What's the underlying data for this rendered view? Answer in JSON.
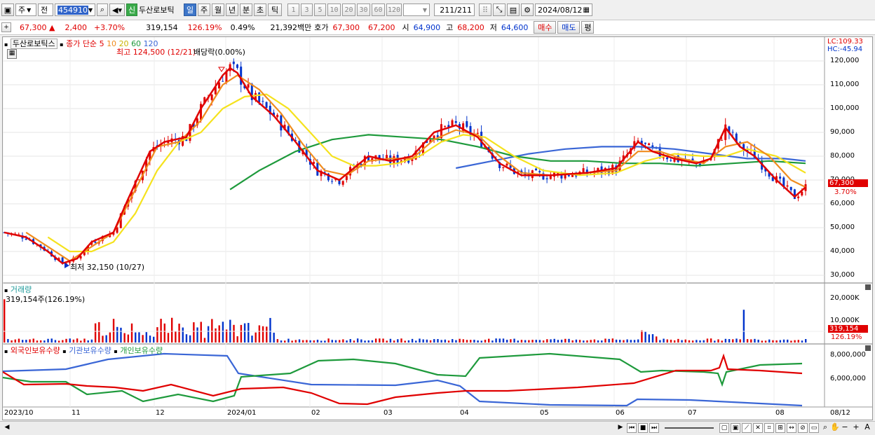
{
  "toolbar": {
    "period_label": "주",
    "market_label": "전",
    "code": "454910",
    "sin_badge": "신",
    "name": "두산로보틱",
    "period_tabs": [
      "일",
      "주",
      "월",
      "년",
      "분",
      "초",
      "틱"
    ],
    "interval_buttons": [
      "1",
      "3",
      "5",
      "10",
      "20",
      "30",
      "60",
      "120"
    ],
    "count": "211",
    "count_total": "/211",
    "date": "2024/08/12"
  },
  "quote": {
    "price": "67,300 ▲",
    "change": "2,400",
    "change_pct": "+3.70%",
    "volume": "319,154",
    "volume_ratio": "126.19%",
    "turnover": "0.49%",
    "amount": "21,392백만",
    "hoga_label": "호가",
    "ask": "67,300",
    "bid": "67,200",
    "open_label": "시",
    "open": "64,900",
    "high_label": "고",
    "high": "68,200",
    "low_label": "저",
    "low": "64,600",
    "buy_label": "매수",
    "sell_label": "매도",
    "eval_label": "평"
  },
  "price_panel": {
    "title": "두산로보틱스",
    "ma_title": "종가 단순",
    "ma_periods": [
      "5",
      "10",
      "20",
      "60",
      "120"
    ],
    "high_note": "최고 124,500 (12/21)",
    "ex_note": "배당락(0.00%)",
    "low_note": "최저 32,150 (10/27)",
    "lc": "LC:109.33",
    "hc": "HC:-45.94",
    "last_price": "67,300",
    "last_pct": "3.70%",
    "y_ticks": [
      "120,000",
      "110,000",
      "100,000",
      "90,000",
      "80,000",
      "70,000",
      "60,000",
      "50,000",
      "40,000",
      "30,000"
    ]
  },
  "volume_panel": {
    "title": "거래량",
    "value_note": "319,154주(126.19%)",
    "y_ticks": [
      "20,000K",
      "10,000K"
    ],
    "last_value": "319,154",
    "last_pct": "126.19%"
  },
  "holding_panel": {
    "legend": [
      "외국인보유수량",
      "기관보유수량",
      "개인보유수량"
    ],
    "y_ticks": [
      "8,000,000",
      "6,000,000"
    ]
  },
  "x_labels": [
    "2023/10",
    "11",
    "12",
    "2024/01",
    "02",
    "03",
    "04",
    "05",
    "06",
    "07",
    "08",
    "08/12"
  ],
  "colors": {
    "up": "#e00000",
    "down": "#0033cc",
    "ma5": "#e00000",
    "ma10": "#f08c1e",
    "ma20": "#f5e21e",
    "ma60": "#1e9a3c",
    "ma120": "#3a66d6",
    "sel": "#3d76c9"
  },
  "chart_data": {
    "type": "candlestick",
    "x_range": [
      "2023/10",
      "2024/08/12"
    ],
    "ylim": [
      27000,
      125000
    ],
    "series_ma": {
      "ma5": [
        [
          0,
          48000
        ],
        [
          6,
          46000
        ],
        [
          12,
          40000
        ],
        [
          16,
          35000
        ],
        [
          20,
          37000
        ],
        [
          24,
          44000
        ],
        [
          30,
          48000
        ],
        [
          34,
          62000
        ],
        [
          40,
          82000
        ],
        [
          44,
          86000
        ],
        [
          50,
          88000
        ],
        [
          54,
          100000
        ],
        [
          60,
          114000
        ],
        [
          62,
          117000
        ],
        [
          64,
          115000
        ],
        [
          68,
          105000
        ],
        [
          74,
          97000
        ],
        [
          80,
          86000
        ],
        [
          86,
          74000
        ],
        [
          92,
          70000
        ],
        [
          96,
          75000
        ],
        [
          100,
          80000
        ],
        [
          106,
          78000
        ],
        [
          112,
          80000
        ],
        [
          118,
          90000
        ],
        [
          124,
          93000
        ],
        [
          130,
          88000
        ],
        [
          136,
          77000
        ],
        [
          142,
          72000
        ],
        [
          150,
          72000
        ],
        [
          160,
          73000
        ],
        [
          168,
          75000
        ],
        [
          174,
          86000
        ],
        [
          178,
          82000
        ],
        [
          184,
          79000
        ],
        [
          190,
          77000
        ],
        [
          194,
          79000
        ],
        [
          198,
          92000
        ],
        [
          202,
          84000
        ],
        [
          206,
          80000
        ],
        [
          212,
          70000
        ],
        [
          217,
          63000
        ],
        [
          220,
          67000
        ]
      ],
      "ma10": [
        [
          6,
          48000
        ],
        [
          12,
          42000
        ],
        [
          18,
          36000
        ],
        [
          24,
          42000
        ],
        [
          30,
          48000
        ],
        [
          36,
          66000
        ],
        [
          42,
          84000
        ],
        [
          48,
          86000
        ],
        [
          54,
          95000
        ],
        [
          60,
          110000
        ],
        [
          64,
          114000
        ],
        [
          70,
          108000
        ],
        [
          76,
          98000
        ],
        [
          82,
          85000
        ],
        [
          88,
          74000
        ],
        [
          94,
          72000
        ],
        [
          100,
          78000
        ],
        [
          106,
          79000
        ],
        [
          112,
          79000
        ],
        [
          118,
          87000
        ],
        [
          124,
          91000
        ],
        [
          130,
          89000
        ],
        [
          136,
          80000
        ],
        [
          142,
          73000
        ],
        [
          150,
          72000
        ],
        [
          160,
          73000
        ],
        [
          168,
          74000
        ],
        [
          174,
          82000
        ],
        [
          180,
          82000
        ],
        [
          186,
          79000
        ],
        [
          192,
          77000
        ],
        [
          198,
          84000
        ],
        [
          204,
          86000
        ],
        [
          210,
          80000
        ],
        [
          216,
          70000
        ],
        [
          220,
          67000
        ]
      ],
      "ma20": [
        [
          12,
          46000
        ],
        [
          18,
          40000
        ],
        [
          24,
          40000
        ],
        [
          30,
          44000
        ],
        [
          36,
          56000
        ],
        [
          42,
          74000
        ],
        [
          48,
          86000
        ],
        [
          54,
          90000
        ],
        [
          60,
          100000
        ],
        [
          66,
          105000
        ],
        [
          72,
          106000
        ],
        [
          78,
          100000
        ],
        [
          84,
          90000
        ],
        [
          90,
          80000
        ],
        [
          96,
          76000
        ],
        [
          102,
          76000
        ],
        [
          108,
          77000
        ],
        [
          114,
          80000
        ],
        [
          120,
          86000
        ],
        [
          126,
          89000
        ],
        [
          132,
          88000
        ],
        [
          140,
          80000
        ],
        [
          148,
          74000
        ],
        [
          158,
          72000
        ],
        [
          168,
          73000
        ],
        [
          176,
          78000
        ],
        [
          184,
          81000
        ],
        [
          192,
          80000
        ],
        [
          198,
          80000
        ],
        [
          204,
          83000
        ],
        [
          212,
          80000
        ],
        [
          220,
          73000
        ]
      ],
      "ma60": [
        [
          62,
          66000
        ],
        [
          70,
          74000
        ],
        [
          80,
          82000
        ],
        [
          90,
          87000
        ],
        [
          100,
          89000
        ],
        [
          110,
          88000
        ],
        [
          120,
          87000
        ],
        [
          130,
          84000
        ],
        [
          140,
          80000
        ],
        [
          150,
          78000
        ],
        [
          160,
          78000
        ],
        [
          170,
          77000
        ],
        [
          180,
          77000
        ],
        [
          190,
          76000
        ],
        [
          200,
          77000
        ],
        [
          210,
          78000
        ],
        [
          220,
          77000
        ]
      ],
      "ma120": [
        [
          124,
          75000
        ],
        [
          134,
          78000
        ],
        [
          144,
          81000
        ],
        [
          154,
          83000
        ],
        [
          164,
          84000
        ],
        [
          174,
          84000
        ],
        [
          184,
          83000
        ],
        [
          194,
          81000
        ],
        [
          204,
          79000
        ],
        [
          214,
          79000
        ],
        [
          220,
          78000
        ]
      ]
    }
  }
}
